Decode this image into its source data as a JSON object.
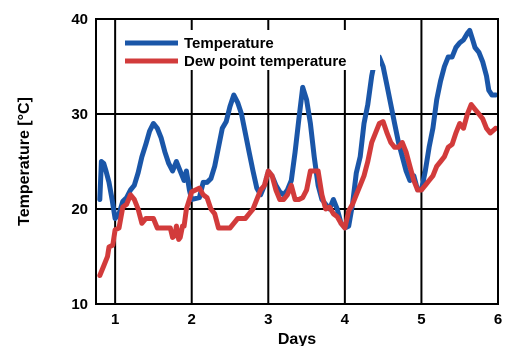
{
  "chart_data": {
    "type": "line",
    "title": "",
    "xlabel": "Days",
    "ylabel": "Temperature [°C]",
    "xlim": [
      0.75,
      6.0
    ],
    "ylim": [
      10,
      40
    ],
    "xticks": [
      "1",
      "2",
      "3",
      "4",
      "5",
      "6"
    ],
    "yticks": [
      "10",
      "20",
      "30",
      "40"
    ],
    "grid": true,
    "legend_position": "top-left",
    "series": [
      {
        "name": "Temperature",
        "color": "#1a56a8",
        "points": [
          [
            0.8,
            21.0
          ],
          [
            0.82,
            25.0
          ],
          [
            0.85,
            24.8
          ],
          [
            0.88,
            24.0
          ],
          [
            0.92,
            22.8
          ],
          [
            0.96,
            21.0
          ],
          [
            1.0,
            19.0
          ],
          [
            1.05,
            19.5
          ],
          [
            1.1,
            20.8
          ],
          [
            1.15,
            21.2
          ],
          [
            1.2,
            22.0
          ],
          [
            1.25,
            22.5
          ],
          [
            1.3,
            23.8
          ],
          [
            1.35,
            25.5
          ],
          [
            1.4,
            26.8
          ],
          [
            1.45,
            28.2
          ],
          [
            1.5,
            29.0
          ],
          [
            1.55,
            28.5
          ],
          [
            1.6,
            27.5
          ],
          [
            1.65,
            26.0
          ],
          [
            1.7,
            24.8
          ],
          [
            1.75,
            24.0
          ],
          [
            1.8,
            25.0
          ],
          [
            1.85,
            24.0
          ],
          [
            1.9,
            23.0
          ],
          [
            1.93,
            24.0
          ],
          [
            1.97,
            22.0
          ],
          [
            2.0,
            21.0
          ],
          [
            2.1,
            21.2
          ],
          [
            2.15,
            22.8
          ],
          [
            2.2,
            22.8
          ],
          [
            2.25,
            23.2
          ],
          [
            2.3,
            24.5
          ],
          [
            2.35,
            26.5
          ],
          [
            2.4,
            28.5
          ],
          [
            2.45,
            29.2
          ],
          [
            2.5,
            30.8
          ],
          [
            2.55,
            32.0
          ],
          [
            2.6,
            31.2
          ],
          [
            2.65,
            30.0
          ],
          [
            2.7,
            28.0
          ],
          [
            2.75,
            26.0
          ],
          [
            2.8,
            24.0
          ],
          [
            2.85,
            22.2
          ],
          [
            2.9,
            21.5
          ],
          [
            2.95,
            22.5
          ],
          [
            3.0,
            24.0
          ],
          [
            3.05,
            23.5
          ],
          [
            3.1,
            22.5
          ],
          [
            3.15,
            21.8
          ],
          [
            3.2,
            21.5
          ],
          [
            3.25,
            22.0
          ],
          [
            3.3,
            23.0
          ],
          [
            3.35,
            26.0
          ],
          [
            3.4,
            29.5
          ],
          [
            3.45,
            32.8
          ],
          [
            3.5,
            31.5
          ],
          [
            3.55,
            29.0
          ],
          [
            3.6,
            25.5
          ],
          [
            3.65,
            22.5
          ],
          [
            3.7,
            21.0
          ],
          [
            3.75,
            20.5
          ],
          [
            3.8,
            20.0
          ],
          [
            3.85,
            21.0
          ],
          [
            3.9,
            20.0
          ],
          [
            3.95,
            18.5
          ],
          [
            4.0,
            18.0
          ],
          [
            4.05,
            18.2
          ],
          [
            4.1,
            20.5
          ],
          [
            4.15,
            23.8
          ],
          [
            4.2,
            25.5
          ],
          [
            4.25,
            29.0
          ],
          [
            4.3,
            31.0
          ],
          [
            4.35,
            34.0
          ],
          [
            4.4,
            36.0
          ],
          [
            4.45,
            36.0
          ],
          [
            4.5,
            35.0
          ],
          [
            4.55,
            33.0
          ],
          [
            4.6,
            31.0
          ],
          [
            4.65,
            29.0
          ],
          [
            4.7,
            27.0
          ],
          [
            4.75,
            25.5
          ],
          [
            4.8,
            24.0
          ],
          [
            4.85,
            23.0
          ],
          [
            4.9,
            23.5
          ],
          [
            4.95,
            22.0
          ],
          [
            5.0,
            22.0
          ],
          [
            5.05,
            24.0
          ],
          [
            5.1,
            26.5
          ],
          [
            5.15,
            28.5
          ],
          [
            5.2,
            31.5
          ],
          [
            5.25,
            33.5
          ],
          [
            5.3,
            35.0
          ],
          [
            5.35,
            36.0
          ],
          [
            5.4,
            36.0
          ],
          [
            5.45,
            37.0
          ],
          [
            5.5,
            37.5
          ],
          [
            5.55,
            37.8
          ],
          [
            5.6,
            38.5
          ],
          [
            5.63,
            38.8
          ],
          [
            5.67,
            37.8
          ],
          [
            5.7,
            37.0
          ],
          [
            5.75,
            36.5
          ],
          [
            5.8,
            35.5
          ],
          [
            5.85,
            34.0
          ],
          [
            5.88,
            32.5
          ],
          [
            5.92,
            32.0
          ],
          [
            5.97,
            32.0
          ]
        ]
      },
      {
        "name": "Dew point temperature",
        "color": "#d23b3b",
        "points": [
          [
            0.8,
            13.0
          ],
          [
            0.85,
            14.0
          ],
          [
            0.9,
            15.0
          ],
          [
            0.92,
            16.0
          ],
          [
            0.97,
            16.2
          ],
          [
            1.0,
            17.8
          ],
          [
            1.05,
            18.0
          ],
          [
            1.1,
            20.2
          ],
          [
            1.15,
            20.5
          ],
          [
            1.2,
            21.5
          ],
          [
            1.25,
            21.0
          ],
          [
            1.3,
            20.0
          ],
          [
            1.35,
            18.5
          ],
          [
            1.4,
            19.0
          ],
          [
            1.45,
            19.0
          ],
          [
            1.5,
            19.0
          ],
          [
            1.55,
            18.0
          ],
          [
            1.6,
            18.0
          ],
          [
            1.65,
            18.0
          ],
          [
            1.7,
            18.0
          ],
          [
            1.72,
            18.0
          ],
          [
            1.75,
            17.0
          ],
          [
            1.78,
            17.2
          ],
          [
            1.8,
            18.2
          ],
          [
            1.83,
            16.8
          ],
          [
            1.85,
            17.0
          ],
          [
            1.88,
            18.2
          ],
          [
            1.9,
            18.2
          ],
          [
            1.93,
            20.0
          ],
          [
            1.97,
            21.0
          ],
          [
            2.0,
            21.8
          ],
          [
            2.1,
            22.2
          ],
          [
            2.15,
            21.5
          ],
          [
            2.2,
            21.2
          ],
          [
            2.25,
            20.0
          ],
          [
            2.3,
            19.5
          ],
          [
            2.35,
            18.0
          ],
          [
            2.4,
            18.0
          ],
          [
            2.45,
            18.0
          ],
          [
            2.5,
            18.0
          ],
          [
            2.55,
            18.5
          ],
          [
            2.6,
            19.0
          ],
          [
            2.65,
            19.0
          ],
          [
            2.7,
            19.0
          ],
          [
            2.75,
            19.5
          ],
          [
            2.8,
            20.0
          ],
          [
            2.85,
            21.0
          ],
          [
            2.9,
            22.0
          ],
          [
            2.95,
            22.5
          ],
          [
            3.0,
            24.0
          ],
          [
            3.05,
            23.5
          ],
          [
            3.1,
            22.0
          ],
          [
            3.15,
            21.0
          ],
          [
            3.2,
            21.0
          ],
          [
            3.25,
            21.5
          ],
          [
            3.3,
            22.5
          ],
          [
            3.35,
            21.0
          ],
          [
            3.4,
            21.0
          ],
          [
            3.45,
            21.2
          ],
          [
            3.5,
            22.0
          ],
          [
            3.55,
            24.0
          ],
          [
            3.6,
            24.0
          ],
          [
            3.65,
            24.0
          ],
          [
            3.7,
            21.5
          ],
          [
            3.75,
            20.0
          ],
          [
            3.8,
            20.2
          ],
          [
            3.85,
            19.5
          ],
          [
            3.9,
            19.2
          ],
          [
            3.95,
            18.5
          ],
          [
            4.0,
            18.0
          ],
          [
            4.05,
            19.8
          ],
          [
            4.1,
            20.5
          ],
          [
            4.15,
            21.5
          ],
          [
            4.2,
            22.5
          ],
          [
            4.25,
            23.5
          ],
          [
            4.3,
            25.0
          ],
          [
            4.35,
            27.0
          ],
          [
            4.4,
            28.0
          ],
          [
            4.45,
            29.0
          ],
          [
            4.5,
            29.2
          ],
          [
            4.55,
            28.0
          ],
          [
            4.6,
            27.0
          ],
          [
            4.65,
            26.5
          ],
          [
            4.7,
            26.5
          ],
          [
            4.75,
            27.0
          ],
          [
            4.8,
            26.0
          ],
          [
            4.85,
            24.5
          ],
          [
            4.9,
            23.0
          ],
          [
            4.95,
            22.0
          ],
          [
            5.0,
            22.0
          ],
          [
            5.05,
            22.5
          ],
          [
            5.1,
            23.0
          ],
          [
            5.15,
            23.5
          ],
          [
            5.2,
            24.5
          ],
          [
            5.25,
            25.0
          ],
          [
            5.3,
            25.5
          ],
          [
            5.35,
            26.5
          ],
          [
            5.4,
            26.8
          ],
          [
            5.45,
            28.0
          ],
          [
            5.5,
            29.0
          ],
          [
            5.55,
            28.5
          ],
          [
            5.6,
            30.0
          ],
          [
            5.65,
            31.0
          ],
          [
            5.7,
            30.5
          ],
          [
            5.75,
            30.0
          ],
          [
            5.8,
            29.5
          ],
          [
            5.85,
            28.5
          ],
          [
            5.9,
            28.0
          ],
          [
            5.97,
            28.5
          ]
        ]
      }
    ]
  }
}
